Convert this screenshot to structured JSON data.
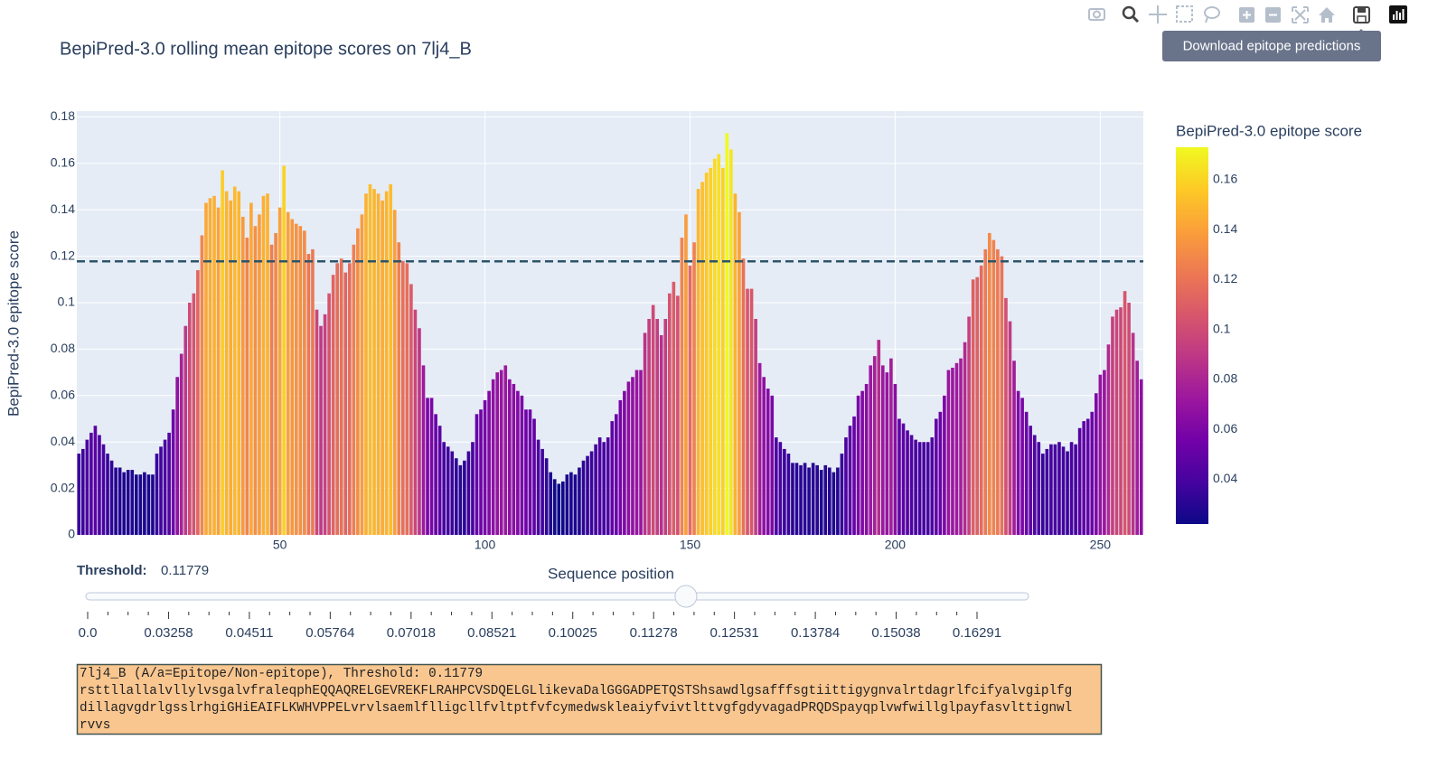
{
  "toolbar": {
    "tooltip": "Download epitope predictions"
  },
  "chart_data": {
    "type": "bar",
    "title": "BepiPred-3.0 rolling mean epitope scores on 7lj4_B",
    "x_label": "Sequence position",
    "y_label": "BepiPred-3.0 epitope score",
    "x": [
      1,
      2,
      3,
      4,
      5,
      6,
      7,
      8,
      9,
      10,
      11,
      12,
      13,
      14,
      15,
      16,
      17,
      18,
      19,
      20,
      21,
      22,
      23,
      24,
      25,
      26,
      27,
      28,
      29,
      30,
      31,
      32,
      33,
      34,
      35,
      36,
      37,
      38,
      39,
      40,
      41,
      42,
      43,
      44,
      45,
      46,
      47,
      48,
      49,
      50,
      51,
      52,
      53,
      54,
      55,
      56,
      57,
      58,
      59,
      60,
      61,
      62,
      63,
      64,
      65,
      66,
      67,
      68,
      69,
      70,
      71,
      72,
      73,
      74,
      75,
      76,
      77,
      78,
      79,
      80,
      81,
      82,
      83,
      84,
      85,
      86,
      87,
      88,
      89,
      90,
      91,
      92,
      93,
      94,
      95,
      96,
      97,
      98,
      99,
      100,
      101,
      102,
      103,
      104,
      105,
      106,
      107,
      108,
      109,
      110,
      111,
      112,
      113,
      114,
      115,
      116,
      117,
      118,
      119,
      120,
      121,
      122,
      123,
      124,
      125,
      126,
      127,
      128,
      129,
      130,
      131,
      132,
      133,
      134,
      135,
      136,
      137,
      138,
      139,
      140,
      141,
      142,
      143,
      144,
      145,
      146,
      147,
      148,
      149,
      150,
      151,
      152,
      153,
      154,
      155,
      156,
      157,
      158,
      159,
      160,
      161,
      162,
      163,
      164,
      165,
      166,
      167,
      168,
      169,
      170,
      171,
      172,
      173,
      174,
      175,
      176,
      177,
      178,
      179,
      180,
      181,
      182,
      183,
      184,
      185,
      186,
      187,
      188,
      189,
      190,
      191,
      192,
      193,
      194,
      195,
      196,
      197,
      198,
      199,
      200,
      201,
      202,
      203,
      204,
      205,
      206,
      207,
      208,
      209,
      210,
      211,
      212,
      213,
      214,
      215,
      216,
      217,
      218,
      219,
      220,
      221,
      222,
      223,
      224,
      225,
      226,
      227,
      228,
      229,
      230,
      231,
      232,
      233,
      234,
      235,
      236,
      237,
      238,
      239,
      240,
      241,
      242,
      243,
      244,
      245,
      246,
      247,
      248,
      249,
      250,
      251,
      252,
      253,
      254,
      255,
      256,
      257,
      258,
      259,
      260
    ],
    "values": [
      0.035,
      0.037,
      0.041,
      0.044,
      0.047,
      0.043,
      0.039,
      0.035,
      0.032,
      0.029,
      0.029,
      0.027,
      0.028,
      0.028,
      0.026,
      0.026,
      0.027,
      0.026,
      0.026,
      0.035,
      0.038,
      0.041,
      0.044,
      0.054,
      0.068,
      0.078,
      0.09,
      0.1,
      0.104,
      0.114,
      0.129,
      0.143,
      0.145,
      0.146,
      0.141,
      0.157,
      0.148,
      0.144,
      0.15,
      0.148,
      0.137,
      0.128,
      0.143,
      0.133,
      0.138,
      0.146,
      0.147,
      0.125,
      0.13,
      0.141,
      0.159,
      0.139,
      0.136,
      0.134,
      0.133,
      0.131,
      0.121,
      0.123,
      0.097,
      0.09,
      0.095,
      0.104,
      0.112,
      0.117,
      0.119,
      0.113,
      0.117,
      0.125,
      0.132,
      0.138,
      0.147,
      0.151,
      0.149,
      0.147,
      0.144,
      0.148,
      0.151,
      0.14,
      0.126,
      0.118,
      0.117,
      0.108,
      0.097,
      0.089,
      0.073,
      0.059,
      0.059,
      0.052,
      0.047,
      0.04,
      0.038,
      0.036,
      0.033,
      0.03,
      0.032,
      0.036,
      0.04,
      0.052,
      0.054,
      0.058,
      0.062,
      0.067,
      0.07,
      0.071,
      0.073,
      0.067,
      0.065,
      0.062,
      0.06,
      0.054,
      0.054,
      0.05,
      0.041,
      0.037,
      0.033,
      0.027,
      0.024,
      0.022,
      0.023,
      0.026,
      0.027,
      0.026,
      0.029,
      0.032,
      0.034,
      0.036,
      0.039,
      0.042,
      0.04,
      0.042,
      0.049,
      0.052,
      0.058,
      0.062,
      0.066,
      0.068,
      0.071,
      0.071,
      0.087,
      0.093,
      0.099,
      0.093,
      0.086,
      0.093,
      0.104,
      0.109,
      0.103,
      0.128,
      0.138,
      0.116,
      0.126,
      0.149,
      0.152,
      0.156,
      0.158,
      0.162,
      0.164,
      0.158,
      0.173,
      0.166,
      0.147,
      0.139,
      0.119,
      0.106,
      0.106,
      0.093,
      0.074,
      0.068,
      0.063,
      0.06,
      0.042,
      0.04,
      0.037,
      0.035,
      0.031,
      0.031,
      0.03,
      0.031,
      0.029,
      0.031,
      0.03,
      0.028,
      0.03,
      0.029,
      0.027,
      0.029,
      0.035,
      0.042,
      0.047,
      0.051,
      0.06,
      0.062,
      0.065,
      0.073,
      0.077,
      0.084,
      0.073,
      0.07,
      0.076,
      0.065,
      0.05,
      0.048,
      0.045,
      0.043,
      0.041,
      0.04,
      0.04,
      0.04,
      0.042,
      0.05,
      0.053,
      0.06,
      0.071,
      0.072,
      0.074,
      0.076,
      0.083,
      0.094,
      0.11,
      0.111,
      0.116,
      0.123,
      0.13,
      0.127,
      0.123,
      0.12,
      0.102,
      0.092,
      0.075,
      0.062,
      0.059,
      0.053,
      0.047,
      0.043,
      0.04,
      0.035,
      0.037,
      0.039,
      0.039,
      0.04,
      0.038,
      0.036,
      0.04,
      0.039,
      0.046,
      0.049,
      0.05,
      0.053,
      0.061,
      0.069,
      0.071,
      0.082,
      0.094,
      0.097,
      0.098,
      0.105,
      0.1,
      0.087,
      0.075,
      0.067
    ],
    "xlim": [
      0.5,
      260.5
    ],
    "xticks": [
      50,
      100,
      150,
      200,
      250
    ],
    "ylim": [
      0,
      0.1825
    ],
    "yticks": [
      0,
      0.02,
      0.04,
      0.06,
      0.08,
      0.1,
      0.12,
      0.14,
      0.16,
      0.18
    ],
    "grid": true,
    "colorscale": "Plasma",
    "colorbar": {
      "title": "BepiPred-3.0 epitope score",
      "range": [
        0.022,
        0.173
      ],
      "ticks": [
        0.04,
        0.06,
        0.08,
        0.1,
        0.12,
        0.14,
        0.16
      ]
    },
    "threshold": 0.11779,
    "threshold_color": "#2d5468"
  },
  "slider": {
    "label": "Threshold:",
    "ticks": [
      {
        "value": 0,
        "label": "0.0"
      },
      0.03258,
      0.04511,
      0.05764,
      0.07018,
      0.08521,
      0.10025,
      0.11278,
      0.12531,
      0.13784,
      0.15038,
      0.16291
    ]
  },
  "sequence_box": {
    "header": "7lj4_B (A/a=Epitope/Non-epitope), Threshold: 0.11779",
    "lines": [
      "rsttllallalvllylvsgalvfraleqphEQQAQRELGEVREKFLRAHPCVSDQELGLlikevaDalGGGADPETQSTShsawdlgsafffsgtiittigygnvalrtdagrlfcifyalvgiplfg",
      "dillagvgdrlgsslrhgiGHiEAIFLKWHVPPELvrvlsaemlflligcllfvltptfvfcymedwskleaiyfvivtlttvgfgdyvagadPRQDSpayqplvwfwillglpayfasvlttignwl",
      "rvvs"
    ]
  }
}
